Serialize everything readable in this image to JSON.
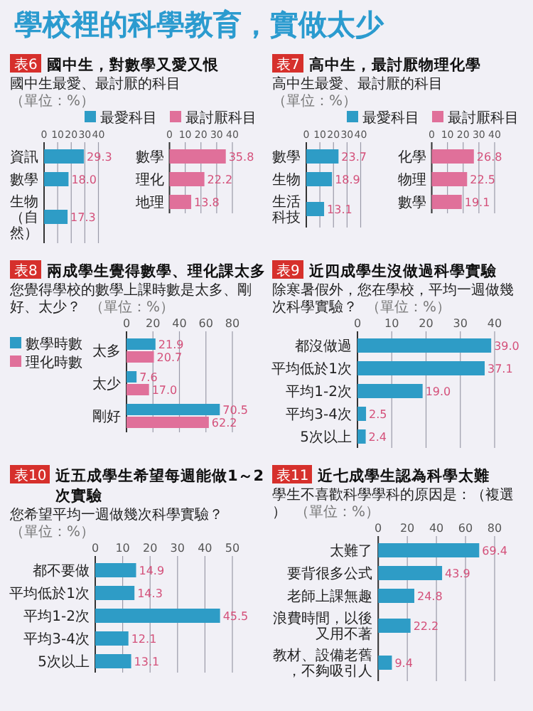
{
  "chart_data": [
    {
      "type": "other",
      "title": "學校裡的科學教育，實做太少"
    },
    {
      "type": "bar",
      "orientation": "horizontal",
      "title": "國中生，對數學又愛又恨",
      "subtitle": "國中生最愛、最討厭的科目",
      "annotations": [
        "表6",
        "（單位：%）"
      ],
      "categories": [
        "資訊",
        "數學",
        "生物（自然）"
      ],
      "series": [
        {
          "name": "最愛科目",
          "color": "#2e9cc6",
          "values": [
            29.3,
            18.0,
            17.3
          ],
          "value_labels": [
            "29.3",
            "18.0",
            "17.3"
          ]
        }
      ],
      "xlim": [
        0,
        40
      ],
      "xticks": [
        0,
        10,
        20,
        30,
        40
      ],
      "grid": "x",
      "data_labels": true,
      "legend": "top right"
    },
    {
      "type": "bar",
      "orientation": "horizontal",
      "categories": [
        "數學",
        "理化",
        "地理"
      ],
      "series": [
        {
          "name": "最討厭科目",
          "color": "#e0709a",
          "values": [
            35.8,
            22.2,
            13.8
          ]
        }
      ],
      "xlim": [
        0,
        40
      ],
      "xticks": [
        0,
        10,
        20,
        30,
        40
      ],
      "grid": "x",
      "data_labels": true,
      "legend": "top right"
    },
    {
      "type": "bar",
      "orientation": "horizontal",
      "title": "高中生，最討厭物理化學",
      "subtitle": "高中生最愛、最討厭的科目",
      "annotations": [
        "表7",
        "（單位：%）"
      ],
      "categories": [
        "數學",
        "生物",
        "生活科技"
      ],
      "series": [
        {
          "name": "最愛科目",
          "color": "#2e9cc6",
          "values": [
            23.7,
            18.9,
            13.1
          ]
        }
      ],
      "xlim": [
        0,
        40
      ],
      "xticks": [
        0,
        10,
        20,
        30,
        40
      ],
      "grid": "x",
      "data_labels": true,
      "legend": "top right"
    },
    {
      "type": "bar",
      "orientation": "horizontal",
      "categories": [
        "化學",
        "物理",
        "數學"
      ],
      "series": [
        {
          "name": "最討厭科目",
          "color": "#e0709a",
          "values": [
            26.8,
            22.5,
            19.1
          ]
        }
      ],
      "xlim": [
        0,
        40
      ],
      "xticks": [
        0,
        10,
        20,
        30,
        40
      ],
      "grid": "x",
      "data_labels": true,
      "legend": "top right"
    },
    {
      "type": "bar",
      "orientation": "horizontal",
      "title": "兩成學生覺得數學、理化課太多",
      "subtitle": "您覺得學校的數學上課時數是太多、剛好、太少？",
      "annotations": [
        "表8",
        "（單位：%）"
      ],
      "categories": [
        "太多",
        "太少",
        "剛好"
      ],
      "series": [
        {
          "name": "數學時數",
          "color": "#2e9cc6",
          "values": [
            21.9,
            7.6,
            70.5
          ]
        },
        {
          "name": "理化時數",
          "color": "#e0709a",
          "values": [
            20.7,
            17.0,
            62.2
          ],
          "value_labels": [
            "20.7",
            "17.0",
            "62.2"
          ]
        }
      ],
      "xlim": [
        0,
        80
      ],
      "xticks": [
        0,
        20,
        40,
        60,
        80
      ],
      "grid": "x",
      "data_labels": true,
      "legend": "left"
    },
    {
      "type": "bar",
      "orientation": "horizontal",
      "title": "近四成學生沒做過科學實驗",
      "subtitle": "除寒暑假外，您在學校，平均一週做幾次科學實驗？",
      "annotations": [
        "表9",
        "（單位：%）"
      ],
      "categories": [
        "都沒做過",
        "平均低於1次",
        "平均1-2次",
        "平均3-4次",
        "5次以上"
      ],
      "values": [
        39.0,
        37.1,
        19.0,
        2.5,
        2.4
      ],
      "value_labels": [
        "39.0",
        "37.1",
        "19.0",
        "2.5",
        "2.4"
      ],
      "color": "#2e9cc6",
      "xlim": [
        0,
        40
      ],
      "xticks": [
        0,
        10,
        20,
        30,
        40
      ],
      "grid": "x",
      "data_labels": true
    },
    {
      "type": "bar",
      "orientation": "horizontal",
      "title": "近五成學生希望每週能做1～2次實驗",
      "subtitle": "您希望平均一週做幾次科學實驗？",
      "annotations": [
        "表10",
        "（單位：%）"
      ],
      "categories": [
        "都不要做",
        "平均低於1次",
        "平均1-2次",
        "平均3-4次",
        "5次以上"
      ],
      "values": [
        14.9,
        14.3,
        45.5,
        12.1,
        13.1
      ],
      "color": "#2e9cc6",
      "xlim": [
        0,
        50
      ],
      "xticks": [
        0,
        10,
        20,
        30,
        40,
        50
      ],
      "grid": "x",
      "data_labels": true
    },
    {
      "type": "bar",
      "orientation": "horizontal",
      "title": "近七成學生認為科學太難",
      "subtitle": "學生不喜歡科學學科的原因是：（複選）",
      "annotations": [
        "表11",
        "（單位：%）"
      ],
      "categories": [
        "太難了",
        "要背很多公式",
        "老師上課無趣",
        "浪費時間，以後又用不著",
        "教材、設備老舊，不夠吸引人"
      ],
      "values": [
        69.4,
        43.9,
        24.8,
        22.2,
        9.4
      ],
      "color": "#2e9cc6",
      "xlim": [
        0,
        80
      ],
      "xticks": [
        0,
        20,
        40,
        60,
        80
      ],
      "grid": "x",
      "data_labels": true
    }
  ]
}
